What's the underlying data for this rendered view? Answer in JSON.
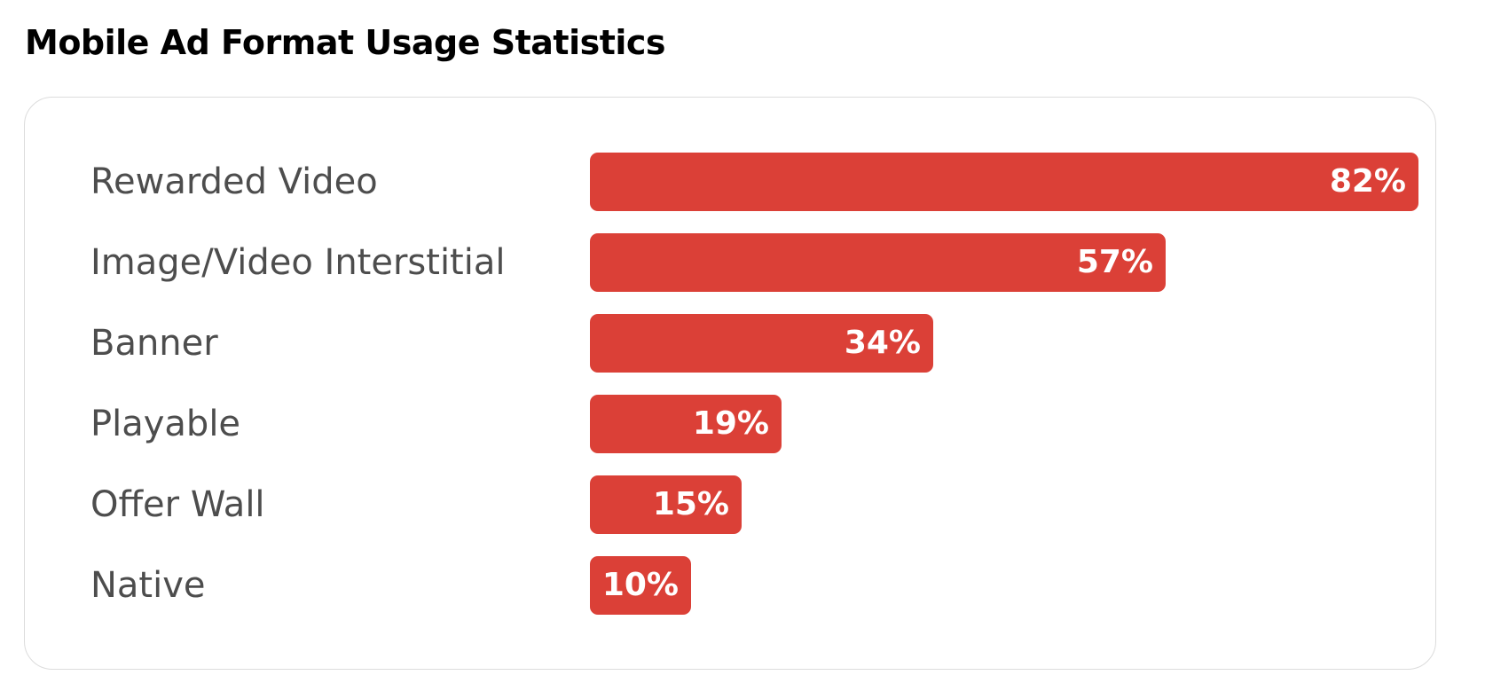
{
  "title": "Mobile Ad Format Usage Statistics",
  "colors": {
    "bar": "#db4037",
    "label": "#4d4d4d",
    "value_text": "#ffffff",
    "card_border": "#dcdcdc"
  },
  "chart_data": {
    "type": "bar",
    "orientation": "horizontal",
    "title": "Mobile Ad Format Usage Statistics",
    "xlabel": "",
    "ylabel": "",
    "value_suffix": "%",
    "xlim": [
      0,
      82
    ],
    "grid": false,
    "categories": [
      "Rewarded Video",
      "Image/Video Interstitial",
      "Banner",
      "Playable",
      "Offer Wall",
      "Native"
    ],
    "values": [
      82,
      57,
      34,
      19,
      15,
      10
    ],
    "value_labels": [
      "82%",
      "57%",
      "34%",
      "19%",
      "15%",
      "10%"
    ]
  }
}
